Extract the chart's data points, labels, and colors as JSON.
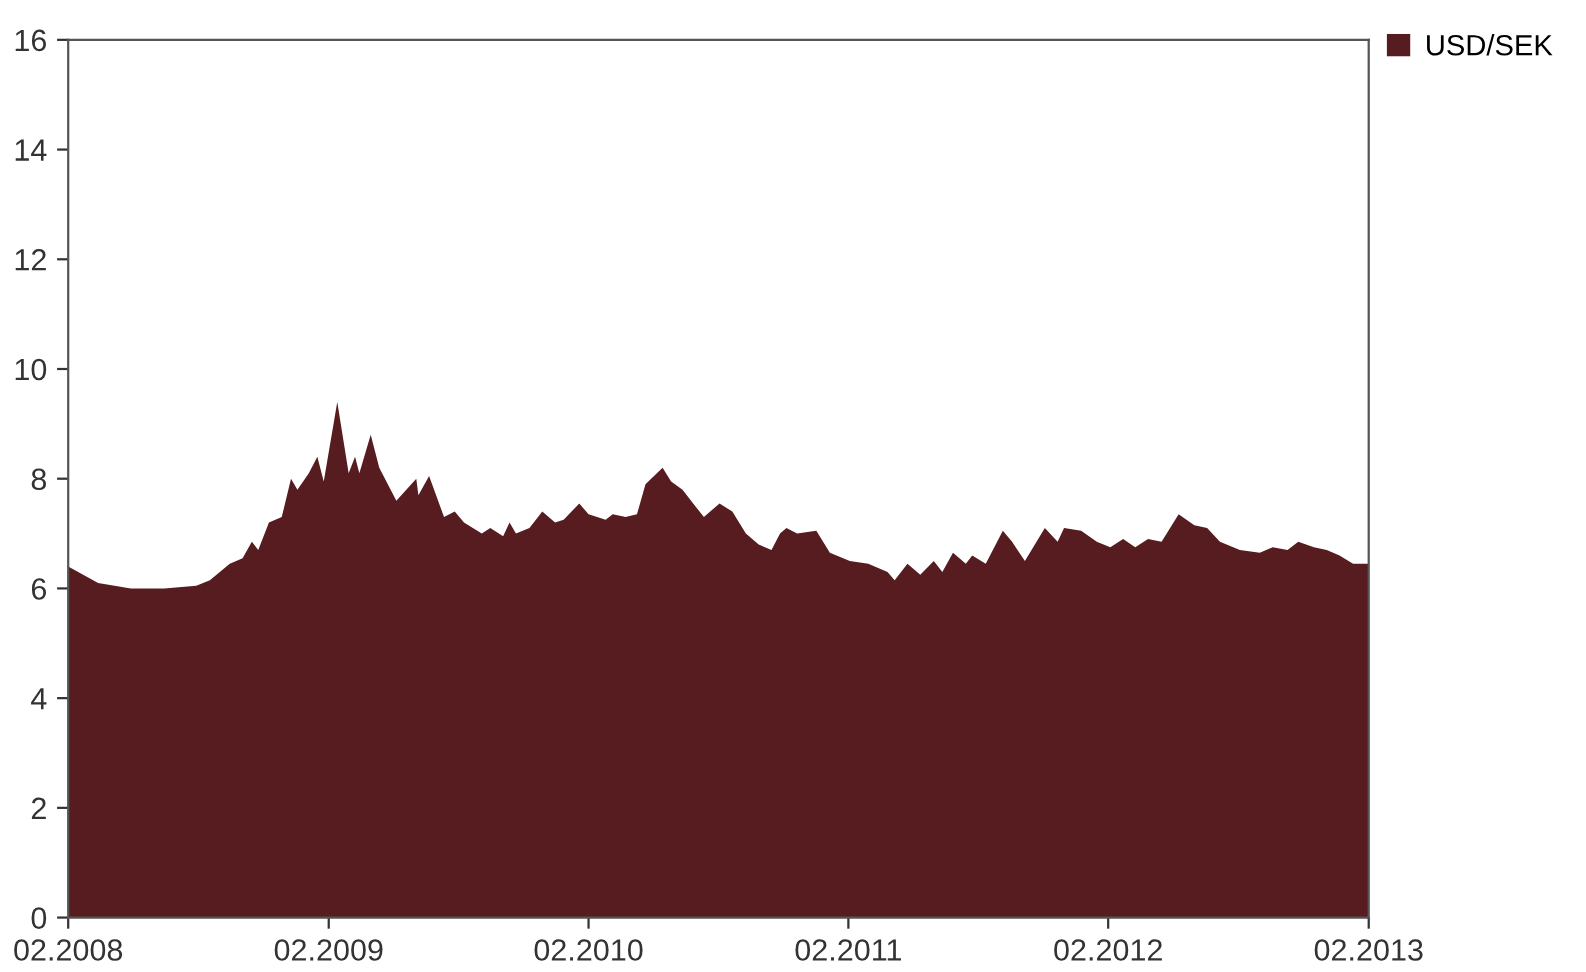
{
  "chart_data": {
    "type": "area",
    "x": [
      "2008-02-01",
      "2008-03-14",
      "2008-04-29",
      "2008-06-15",
      "2008-07-30",
      "2008-08-18",
      "2008-09-15",
      "2008-10-03",
      "2008-10-16",
      "2008-10-25",
      "2008-11-09",
      "2008-11-27",
      "2008-12-10",
      "2008-12-19",
      "2009-01-04",
      "2009-01-16",
      "2009-01-25",
      "2009-02-13",
      "2009-03-01",
      "2009-03-10",
      "2009-03-16",
      "2009-04-01",
      "2009-04-13",
      "2009-05-07",
      "2009-06-04",
      "2009-06-07",
      "2009-06-22",
      "2009-07-13",
      "2009-07-28",
      "2009-08-10",
      "2009-09-04",
      "2009-09-16",
      "2009-10-04",
      "2009-10-13",
      "2009-10-22",
      "2009-11-10",
      "2009-11-28",
      "2009-12-16",
      "2009-12-28",
      "2010-01-19",
      "2010-02-01",
      "2010-02-25",
      "2010-03-07",
      "2010-03-25",
      "2010-04-10",
      "2010-04-22",
      "2010-05-16",
      "2010-05-28",
      "2010-06-13",
      "2010-07-01",
      "2010-07-13",
      "2010-08-04",
      "2010-08-22",
      "2010-09-10",
      "2010-09-28",
      "2010-10-16",
      "2010-10-28",
      "2010-11-06",
      "2010-11-21",
      "2010-12-18",
      "2011-01-06",
      "2011-02-03",
      "2011-03-01",
      "2011-03-28",
      "2011-04-07",
      "2011-04-25",
      "2011-05-13",
      "2011-06-01",
      "2011-06-13",
      "2011-06-28",
      "2011-07-16",
      "2011-07-25",
      "2011-08-13",
      "2011-09-06",
      "2011-09-19",
      "2011-10-07",
      "2011-11-04",
      "2011-11-22",
      "2011-12-01",
      "2011-12-25",
      "2012-01-16",
      "2012-02-04",
      "2012-02-22",
      "2012-03-10",
      "2012-03-28",
      "2012-04-16",
      "2012-05-10",
      "2012-06-01",
      "2012-06-19",
      "2012-07-07",
      "2012-08-04",
      "2012-09-01",
      "2012-09-19",
      "2012-10-10",
      "2012-10-25",
      "2012-11-16",
      "2012-12-04",
      "2012-12-22",
      "2013-01-10",
      "2013-01-28",
      "2013-02-01"
    ],
    "series": [
      {
        "name": "USD/SEK",
        "color": "#561c1f",
        "values": [
          6.4,
          6.1,
          6.0,
          6.0,
          6.05,
          6.15,
          6.45,
          6.55,
          6.85,
          6.7,
          7.2,
          7.3,
          8.0,
          7.8,
          8.1,
          8.4,
          7.95,
          9.4,
          8.1,
          8.4,
          8.1,
          8.8,
          8.2,
          7.6,
          8.0,
          7.7,
          8.05,
          7.3,
          7.4,
          7.2,
          7.0,
          7.1,
          6.95,
          7.2,
          7.0,
          7.1,
          7.4,
          7.2,
          7.25,
          7.55,
          7.35,
          7.25,
          7.35,
          7.3,
          7.35,
          7.9,
          8.2,
          7.95,
          7.8,
          7.5,
          7.3,
          7.55,
          7.4,
          7.0,
          6.8,
          6.7,
          7.0,
          7.1,
          7.0,
          7.05,
          6.65,
          6.5,
          6.45,
          6.3,
          6.15,
          6.45,
          6.25,
          6.5,
          6.3,
          6.65,
          6.45,
          6.6,
          6.45,
          7.05,
          6.85,
          6.5,
          7.1,
          6.85,
          7.1,
          7.05,
          6.85,
          6.75,
          6.9,
          6.75,
          6.9,
          6.85,
          7.35,
          7.15,
          7.1,
          6.85,
          6.7,
          6.65,
          6.75,
          6.7,
          6.85,
          6.75,
          6.7,
          6.6,
          6.45,
          6.45,
          6.45
        ]
      }
    ],
    "xlim": [
      "2008-02-01",
      "2013-02-01"
    ],
    "xticks": [
      {
        "value": "2008-02-01",
        "label": "02.2008"
      },
      {
        "value": "2009-02-01",
        "label": "02.2009"
      },
      {
        "value": "2010-02-01",
        "label": "02.2010"
      },
      {
        "value": "2011-02-01",
        "label": "02.2011"
      },
      {
        "value": "2012-02-01",
        "label": "02.2012"
      },
      {
        "value": "2013-02-01",
        "label": "02.2013"
      }
    ],
    "ylim": [
      0,
      16
    ],
    "yticks": [
      0,
      2,
      4,
      6,
      8,
      10,
      12,
      14,
      16
    ],
    "legend": "top right"
  }
}
